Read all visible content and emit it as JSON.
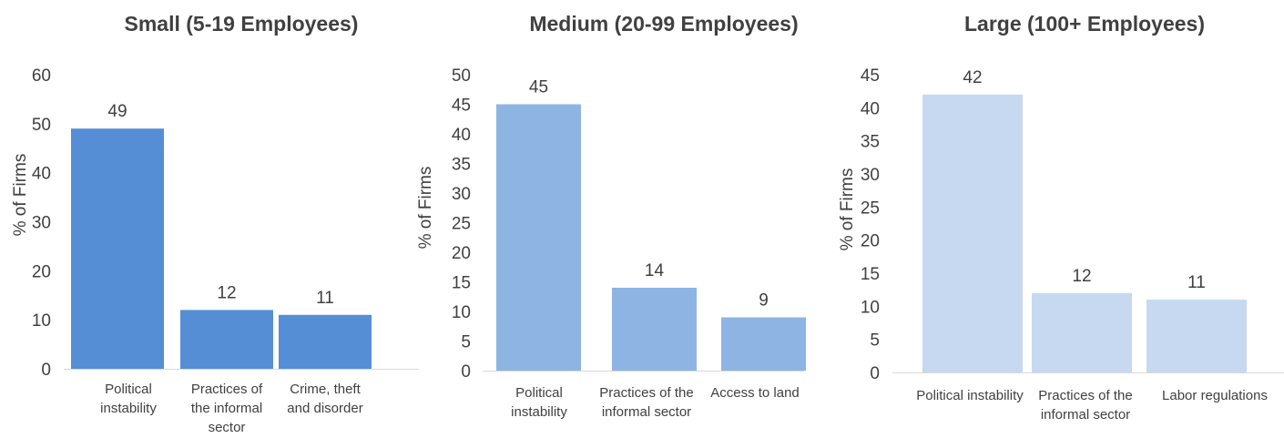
{
  "chart_data": [
    {
      "type": "bar",
      "title": "Small (5-19 Employees)",
      "ylabel": "% of Firms",
      "xlabel": "",
      "ylim": [
        0,
        60
      ],
      "yticks": [
        0,
        10,
        20,
        30,
        40,
        50,
        60
      ],
      "categories": [
        [
          "Political",
          "instability"
        ],
        [
          "Practices of",
          "the informal",
          "sector"
        ],
        [
          "Crime, theft",
          "and disorder"
        ]
      ],
      "values": [
        49,
        12,
        11
      ],
      "color": "#558ED5",
      "grid": false,
      "legend": "none"
    },
    {
      "type": "bar",
      "title": "Medium (20-99 Employees)",
      "ylabel": "% of Firms",
      "xlabel": "",
      "ylim": [
        0,
        50
      ],
      "yticks": [
        0,
        5,
        10,
        15,
        20,
        25,
        30,
        35,
        40,
        45,
        50
      ],
      "categories": [
        [
          "Political",
          "instability"
        ],
        [
          "Practices of the",
          "informal sector"
        ],
        [
          "Access to land"
        ]
      ],
      "values": [
        45,
        14,
        9
      ],
      "color": "#8EB4E3",
      "grid": false,
      "legend": "none"
    },
    {
      "type": "bar",
      "title": "Large (100+ Employees)",
      "ylabel": "% of Firms",
      "xlabel": "",
      "ylim": [
        0,
        45
      ],
      "yticks": [
        0,
        5,
        10,
        15,
        20,
        25,
        30,
        35,
        40,
        45
      ],
      "categories": [
        [
          "Political instability"
        ],
        [
          "Practices of the",
          "informal sector"
        ],
        [
          "Labor regulations"
        ]
      ],
      "values": [
        42,
        12,
        11
      ],
      "color": "#C6D9F1",
      "grid": false,
      "legend": "none"
    }
  ]
}
